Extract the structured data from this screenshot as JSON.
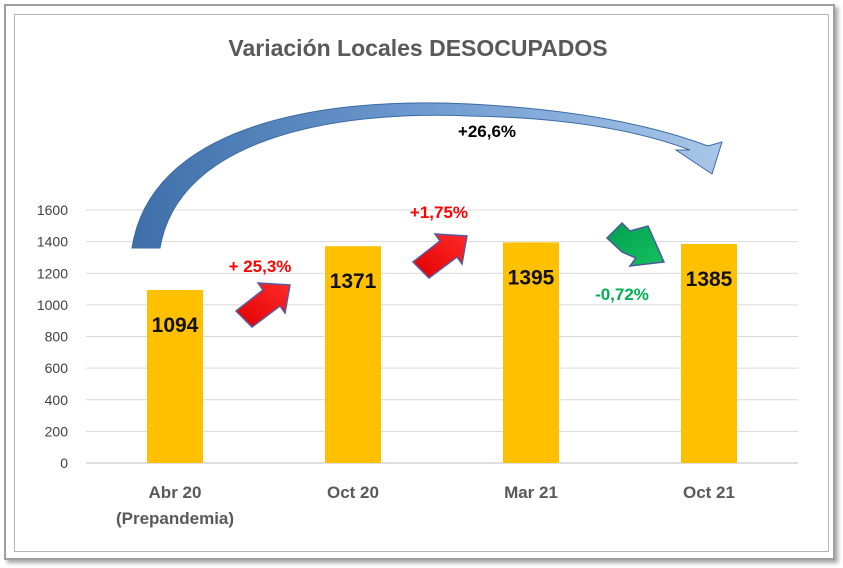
{
  "chart_data": {
    "type": "bar",
    "title": "Variación Locales DESOCUPADOS",
    "categories": [
      [
        "Abr 20",
        "(Prepandemia)"
      ],
      [
        "Oct 20"
      ],
      [
        "Mar 21"
      ],
      [
        "Oct 21"
      ]
    ],
    "values": [
      1094,
      1371,
      1395,
      1385
    ],
    "data_labels": [
      "1094",
      "1371",
      "1395",
      "1385"
    ],
    "ylim": [
      0,
      1600
    ],
    "yticks": [
      0,
      200,
      400,
      600,
      800,
      1000,
      1200,
      1400,
      1600
    ],
    "xlabel": "",
    "ylabel": "",
    "grid": true,
    "bar_color": "#FFC000",
    "annotations": [
      {
        "text": "+ 25,3%",
        "color": "#FF0000",
        "arrow": "up",
        "arrow_color": "#FF0000"
      },
      {
        "text": "+1,75%",
        "color": "#FF0000",
        "arrow": "up",
        "arrow_color": "#FF0000"
      },
      {
        "text": "-0,72%",
        "color": "#00B050",
        "arrow": "down",
        "arrow_color": "#00B050"
      },
      {
        "text": "+26,6%",
        "color": "#000000",
        "arrow": "curved",
        "arrow_color": "#4A7EBB"
      }
    ]
  }
}
